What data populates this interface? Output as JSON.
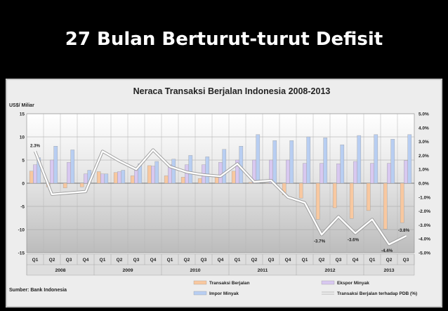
{
  "slide": {
    "title": "27 Bulan Berturut-turut Defisit"
  },
  "chart_data": {
    "type": "bar",
    "title": "Neraca Transaksi Berjalan Indonesia 2008-2013",
    "y_left_label": "US$/ Miliar",
    "y_left_range": [
      -15,
      15
    ],
    "y_left_ticks": [
      "15",
      "10",
      "5",
      "0",
      "-5",
      "-10",
      "-15"
    ],
    "y_right_range": [
      -5.0,
      5.0
    ],
    "y_right_ticks": [
      "5.0%",
      "4.0%",
      "3.0%",
      "2.0%",
      "1.0%",
      "0.0%",
      "-1.0%",
      "-2.0%",
      "-3.0%",
      "-4.0%",
      "-5.0%"
    ],
    "grid": true,
    "source": "Sumber: Bank Indonesia",
    "categories": [
      "Q1",
      "Q2",
      "Q3",
      "Q4",
      "Q1",
      "Q2",
      "Q3",
      "Q4",
      "Q1",
      "Q2",
      "Q3",
      "Q4",
      "Q1",
      "Q2",
      "Q3",
      "Q4",
      "Q1",
      "Q2",
      "Q3",
      "Q4",
      "Q1",
      "Q2",
      "Q3"
    ],
    "years": [
      {
        "label": "2008",
        "start": 0,
        "count": 4
      },
      {
        "label": "2009",
        "start": 4,
        "count": 4
      },
      {
        "label": "2010",
        "start": 8,
        "count": 4
      },
      {
        "label": "2011",
        "start": 12,
        "count": 4
      },
      {
        "label": "2012",
        "start": 16,
        "count": 4
      },
      {
        "label": "2013",
        "start": 20,
        "count": 3
      }
    ],
    "series": [
      {
        "name": "Transaksi Berjalan",
        "kind": "bar",
        "color": "#f8c8a0",
        "values": [
          2.6,
          -0.8,
          -1.0,
          -0.8,
          2.5,
          2.3,
          1.6,
          3.8,
          1.6,
          1.3,
          1.0,
          1.4,
          2.6,
          0.2,
          0.0,
          -2.5,
          -3.2,
          -7.8,
          -5.3,
          -7.6,
          -5.9,
          -9.9,
          -8.5
        ]
      },
      {
        "name": "Ekspor Minyak",
        "kind": "bar",
        "color": "#d8c8f0",
        "values": [
          4.0,
          5.0,
          4.5,
          2.0,
          2.0,
          2.5,
          3.0,
          3.7,
          4.0,
          4.0,
          4.0,
          4.5,
          5.0,
          5.0,
          5.0,
          5.0,
          4.3,
          4.3,
          4.2,
          4.7,
          4.3,
          4.3,
          4.9
        ]
      },
      {
        "name": "Impor Minyak",
        "kind": "bar",
        "color": "#b8cef2",
        "values": [
          5.5,
          8.0,
          7.2,
          2.8,
          2.0,
          2.8,
          4.2,
          4.7,
          5.2,
          6.0,
          5.7,
          7.3,
          8.0,
          10.5,
          9.2,
          9.2,
          10.0,
          9.8,
          8.3,
          10.3,
          10.5,
          9.5,
          10.5
        ]
      },
      {
        "name": "Transaksi Berjalan terhadap PDB (%)",
        "kind": "line",
        "axis": "right",
        "color": "#ffffff",
        "values": [
          2.3,
          -0.8,
          -0.7,
          -0.6,
          2.3,
          1.6,
          1.0,
          2.4,
          1.2,
          0.8,
          0.6,
          0.5,
          1.4,
          0.1,
          0.2,
          -1.0,
          -1.4,
          -3.7,
          -2.4,
          -3.6,
          -2.6,
          -4.4,
          -3.8
        ]
      }
    ],
    "data_labels": [
      {
        "index": 0,
        "text": "2.3%"
      },
      {
        "index": 17,
        "text": "-3.7%"
      },
      {
        "index": 19,
        "text": "-3.6%"
      },
      {
        "index": 21,
        "text": "-4.4%"
      },
      {
        "index": 22,
        "text": "-3.8%"
      }
    ],
    "legend": [
      "Transaksi Berjalan",
      "Ekspor Minyak",
      "Impor Minyak",
      "Transaksi Berjalan terhadap PDB (%)"
    ],
    "legend_placement": "bottom"
  }
}
